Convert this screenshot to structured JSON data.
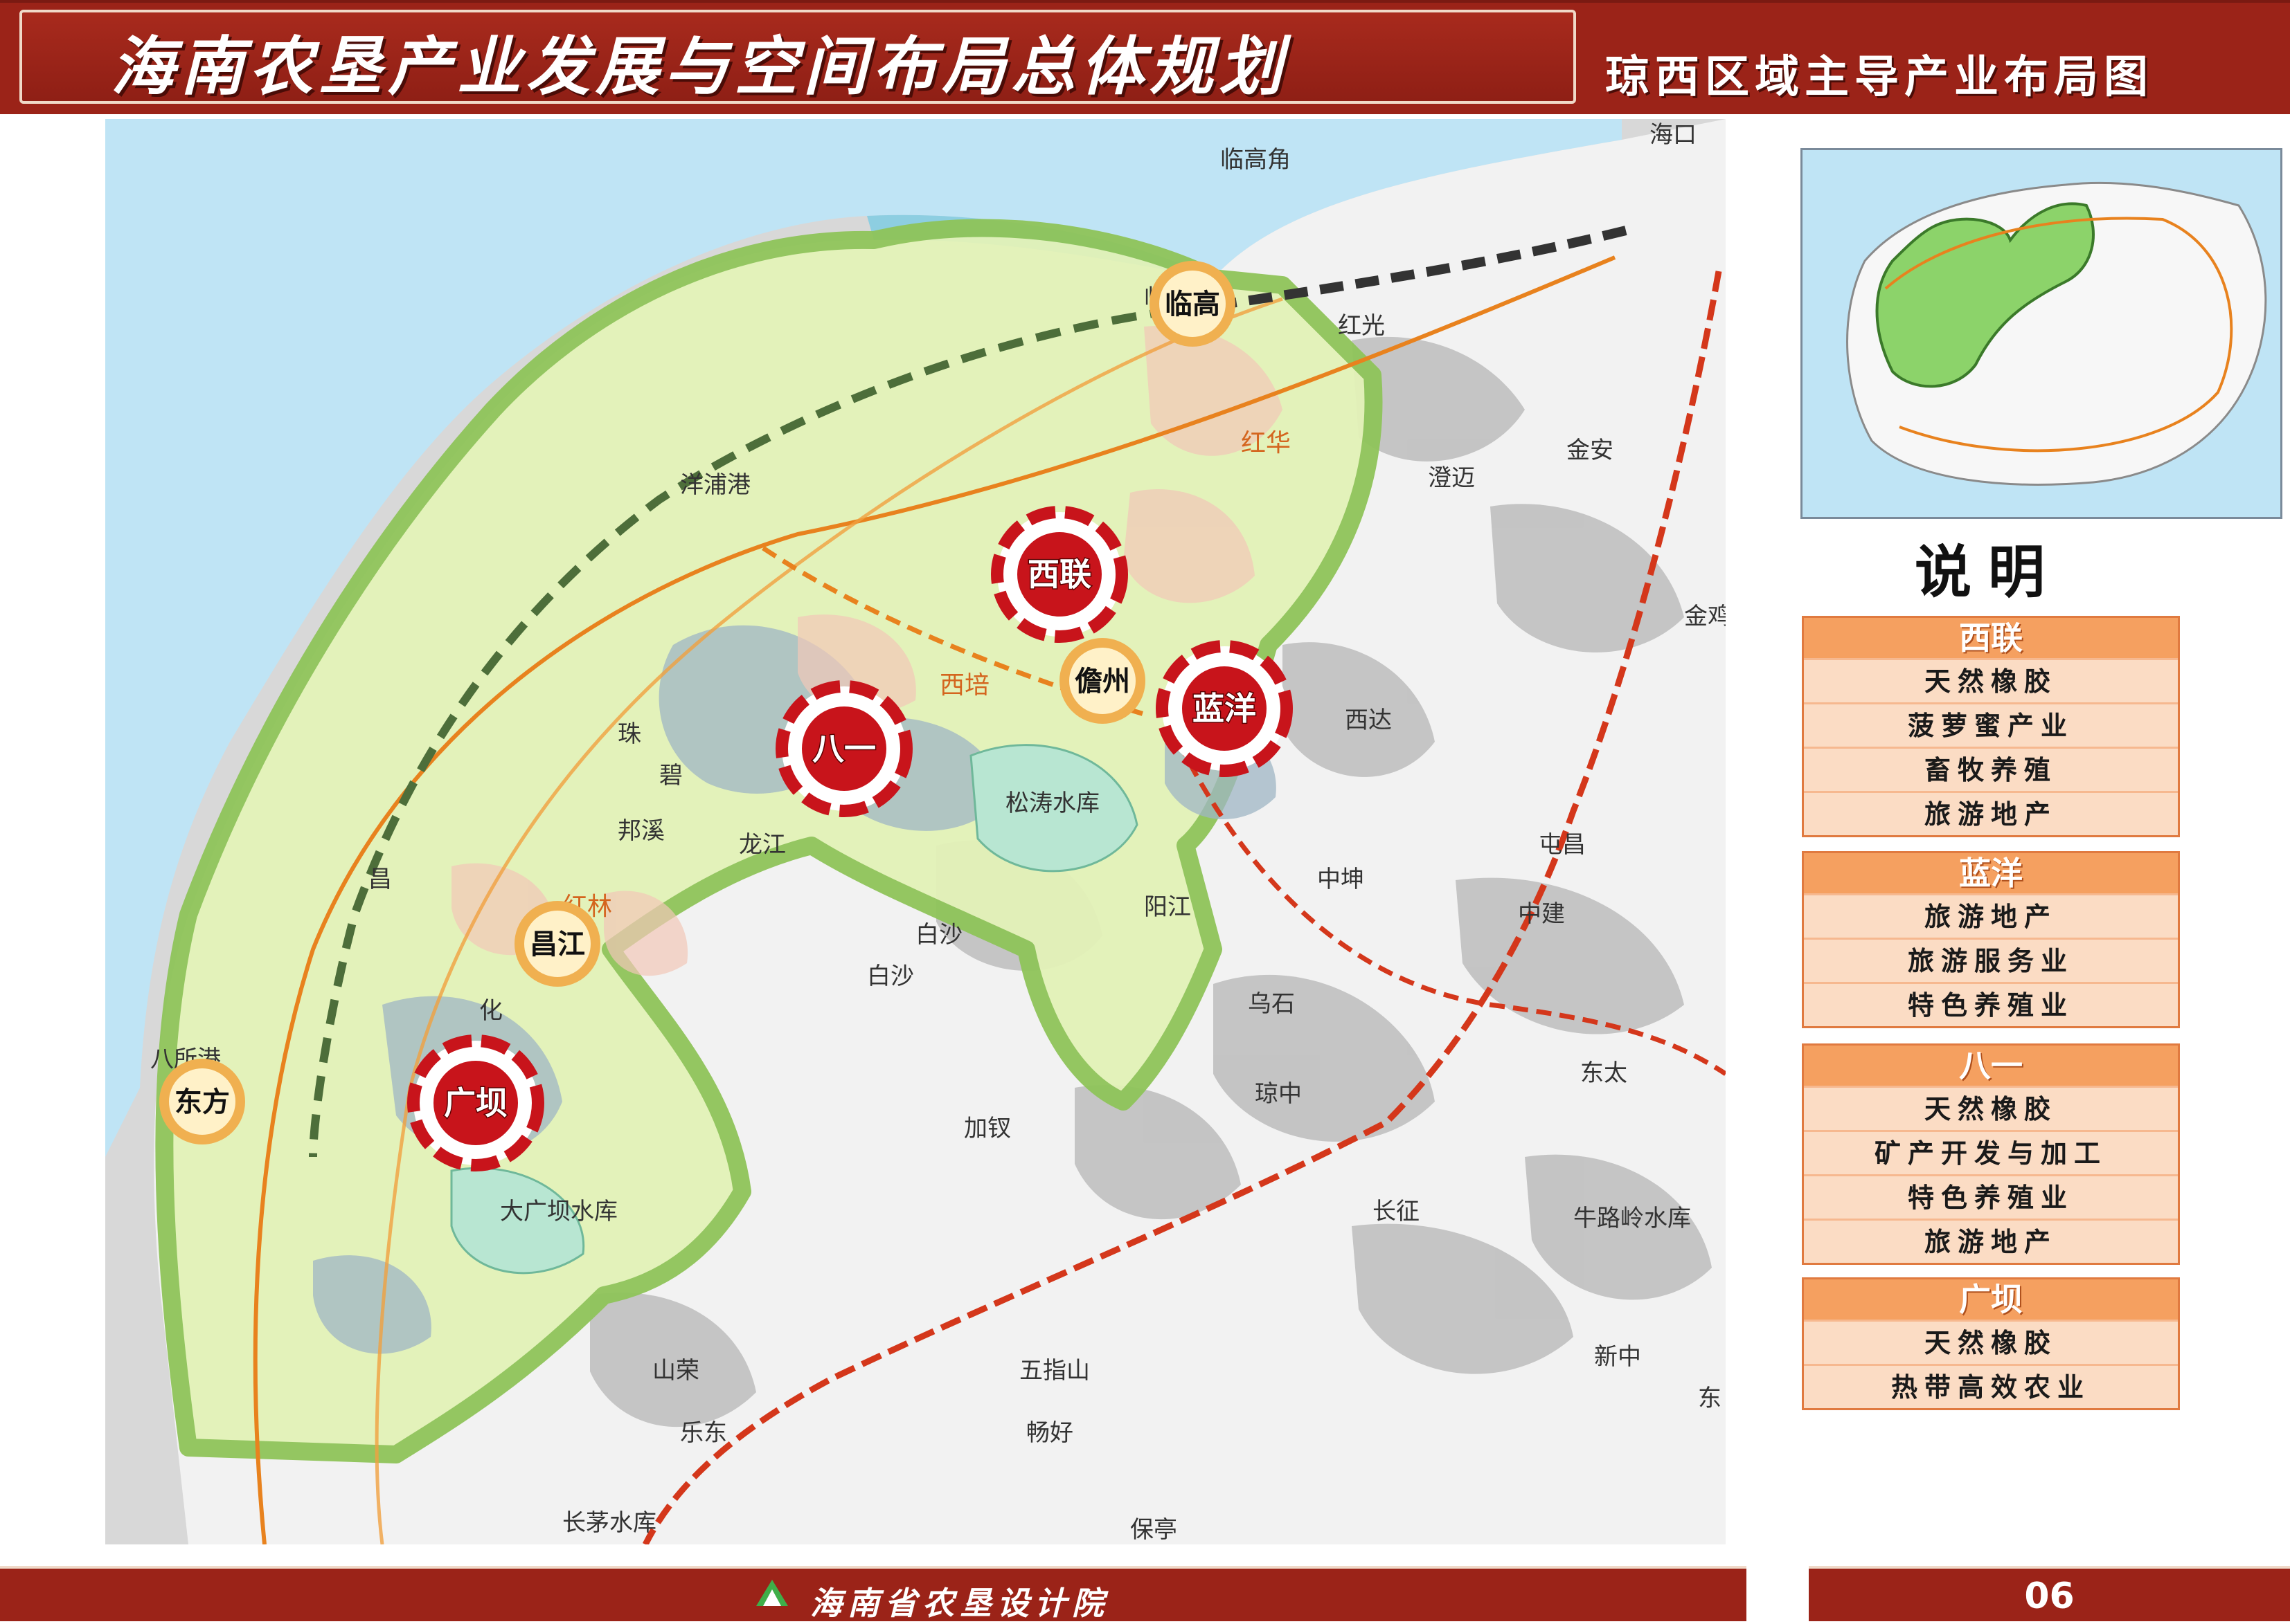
{
  "header": {
    "title": "海南农垦产业发展与空间布局总体规划",
    "subtitle": "琼西区域主导产业布局图"
  },
  "colors": {
    "banner": "#9b2318",
    "region_fill": "#e3f2b8",
    "region_border": "#8fc45a",
    "legend_head": "#f5a060",
    "legend_body": "#fbdcc4",
    "hub_red": "#c8141b",
    "node_gold": "#f0b050"
  },
  "map": {
    "hubs": [
      "西联",
      "八一",
      "蓝洋",
      "广坝"
    ],
    "nodes": [
      "临高",
      "儋州",
      "昌江",
      "东方"
    ],
    "place_labels": {
      "haikou": "海口",
      "lingaojiao": "临高角",
      "lingao": "临高",
      "yangpu": "洋浦港",
      "hongguang": "红光",
      "honghua": "红华",
      "chengmai": "澄迈",
      "jinan": "金安",
      "jinji": "金鸡",
      "xipei": "西培",
      "xida": "西达",
      "tunchang": "屯昌",
      "bi": "碧",
      "bangxi": "邦溪",
      "longjiang": "龙江",
      "songtao": "松涛水库",
      "yangjiang": "阳江",
      "zhongkun": "中坤",
      "zhongjian": "中建",
      "baisha_town": "白沙",
      "baisha": "白沙",
      "hongling": "红林",
      "changjiang_small": "昌",
      "hua": "化",
      "basuo": "八所港",
      "wushi": "乌石",
      "dongtai": "东太",
      "qiongzhong": "琼中",
      "jiacha": "加钗",
      "daguangba": "大广坝水库",
      "changzheng": "长征",
      "niululing": "牛路岭水库",
      "xinzhong": "新中",
      "shanrong": "山荣",
      "wuzhishan": "五指山",
      "ledong": "乐东",
      "changhao": "畅好",
      "changmao": "长茅水库",
      "baoting": "保亭",
      "dong": "东",
      "zhu": "珠"
    }
  },
  "legend": {
    "title": "说明",
    "groups": [
      {
        "name": "西联",
        "items": [
          "天然橡胶",
          "菠萝蜜产业",
          "畜牧养殖",
          "旅游地产"
        ]
      },
      {
        "name": "蓝洋",
        "items": [
          "旅游地产",
          "旅游服务业",
          "特色养殖业"
        ]
      },
      {
        "name": "八一",
        "items": [
          "天然橡胶",
          "矿产开发与加工",
          "特色养殖业",
          "旅游地产"
        ]
      },
      {
        "name": "广坝",
        "items": [
          "天然橡胶",
          "热带高效农业"
        ]
      }
    ]
  },
  "footer": {
    "org": "海南省农垦设计院",
    "page": "06"
  }
}
